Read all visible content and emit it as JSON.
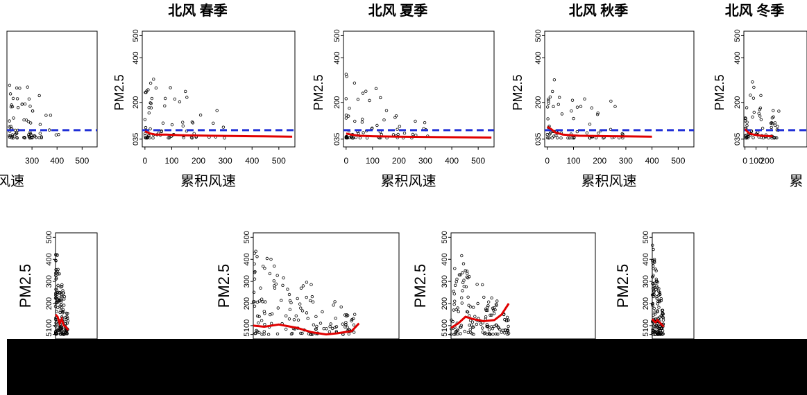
{
  "colors": {
    "points": "#000000",
    "smooth_line": "#e00000",
    "threshold_line": "#1f2fd6",
    "frame": "#000000",
    "background": "#ffffff",
    "bottom_band": "#000000"
  },
  "chart_data": [
    {
      "type": "scatter",
      "panel": "top-1",
      "title": "",
      "xlabel": "积风速",
      "ylabel": "",
      "xticks": [
        "300",
        "400",
        "500"
      ],
      "yticks": [],
      "xlim": [
        200,
        560
      ],
      "ylim": [
        0,
        520
      ],
      "threshold": 75,
      "smooth": []
    },
    {
      "type": "scatter",
      "panel": "top-2",
      "title": "北风 春季",
      "xlabel": "累积风速",
      "ylabel": "PM2.5",
      "xticks": [
        "0",
        "100",
        "200",
        "300",
        "400",
        "500"
      ],
      "yticks": [
        "035",
        "200",
        "400",
        "500"
      ],
      "xlim": [
        -10,
        560
      ],
      "ylim": [
        0,
        520
      ],
      "threshold": 75,
      "smooth": [
        [
          0,
          70
        ],
        [
          20,
          60
        ],
        [
          40,
          55
        ],
        [
          80,
          55
        ],
        [
          150,
          52
        ],
        [
          250,
          50
        ],
        [
          400,
          48
        ],
        [
          550,
          46
        ]
      ]
    },
    {
      "type": "scatter",
      "panel": "top-3",
      "title": "北风 夏季",
      "xlabel": "累积风速",
      "ylabel": "PM2.5",
      "xticks": [
        "0",
        "100",
        "200",
        "300",
        "400",
        "500"
      ],
      "yticks": [
        "035",
        "200",
        "400",
        "500"
      ],
      "xlim": [
        -10,
        560
      ],
      "ylim": [
        0,
        520
      ],
      "threshold": 75,
      "smooth": [
        [
          0,
          60
        ],
        [
          20,
          55
        ],
        [
          50,
          50
        ],
        [
          100,
          48
        ],
        [
          200,
          46
        ],
        [
          350,
          44
        ],
        [
          550,
          42
        ]
      ]
    },
    {
      "type": "scatter",
      "panel": "top-4",
      "title": "北风 秋季",
      "xlabel": "累积风速",
      "ylabel": "PM2.5",
      "xticks": [
        "0",
        "100",
        "200",
        "300",
        "400",
        "500"
      ],
      "yticks": [
        "035",
        "200",
        "400",
        "500"
      ],
      "xlim": [
        -10,
        560
      ],
      "ylim": [
        0,
        520
      ],
      "threshold": 75,
      "smooth": [
        [
          0,
          90
        ],
        [
          15,
          80
        ],
        [
          30,
          65
        ],
        [
          60,
          55
        ],
        [
          120,
          50
        ],
        [
          250,
          48
        ],
        [
          400,
          46
        ]
      ]
    },
    {
      "type": "scatter",
      "panel": "top-5",
      "title": "北风 冬季",
      "xlabel": "累",
      "ylabel": "PM2.5",
      "xticks": [
        "0",
        "100",
        "200"
      ],
      "yticks": [
        "035",
        "200",
        "400",
        "500"
      ],
      "xlim": [
        -10,
        560
      ],
      "ylim": [
        0,
        520
      ],
      "threshold": 75,
      "smooth": [
        [
          0,
          80
        ],
        [
          20,
          70
        ],
        [
          40,
          60
        ],
        [
          80,
          55
        ],
        [
          150,
          50
        ],
        [
          250,
          48
        ]
      ]
    },
    {
      "type": "scatter",
      "panel": "bottom-1",
      "title": "",
      "xlabel": "",
      "ylabel": "PM2.5",
      "xticks": [],
      "yticks": [
        "5",
        "100",
        "200",
        "300",
        "400",
        "500"
      ],
      "xlim": [
        0,
        200
      ],
      "ylim": [
        40,
        520
      ],
      "threshold": null,
      "smooth": [
        [
          0,
          150
        ],
        [
          10,
          140
        ],
        [
          20,
          110
        ],
        [
          30,
          130
        ],
        [
          40,
          100
        ],
        [
          50,
          95
        ],
        [
          60,
          80
        ]
      ]
    },
    {
      "type": "scatter",
      "panel": "bottom-2",
      "title": "",
      "xlabel": "",
      "ylabel": "PM2.5",
      "xticks": [],
      "yticks": [
        "5",
        "100",
        "200",
        "300",
        "400",
        "500"
      ],
      "xlim": [
        0,
        200
      ],
      "ylim": [
        40,
        520
      ],
      "threshold": null,
      "smooth": [
        [
          0,
          100
        ],
        [
          15,
          95
        ],
        [
          35,
          105
        ],
        [
          60,
          90
        ],
        [
          80,
          70
        ],
        [
          100,
          60
        ],
        [
          115,
          65
        ],
        [
          125,
          70
        ],
        [
          135,
          75
        ],
        [
          145,
          110
        ]
      ]
    },
    {
      "type": "scatter",
      "panel": "bottom-3",
      "title": "",
      "xlabel": "",
      "ylabel": "PM2.5",
      "xticks": [],
      "yticks": [
        "5",
        "100",
        "200",
        "300",
        "400",
        "500"
      ],
      "xlim": [
        0,
        200
      ],
      "ylim": [
        40,
        520
      ],
      "threshold": null,
      "smooth": [
        [
          0,
          90
        ],
        [
          10,
          110
        ],
        [
          20,
          140
        ],
        [
          30,
          130
        ],
        [
          45,
          120
        ],
        [
          60,
          125
        ],
        [
          70,
          150
        ],
        [
          80,
          200
        ]
      ]
    },
    {
      "type": "scatter",
      "panel": "bottom-4",
      "title": "",
      "xlabel": "",
      "ylabel": "PM2.5",
      "xticks": [],
      "yticks": [
        "5",
        "100",
        "200",
        "300",
        "400",
        "500"
      ],
      "xlim": [
        0,
        200
      ],
      "ylim": [
        40,
        520
      ],
      "threshold": null,
      "smooth": [
        [
          0,
          130
        ],
        [
          8,
          120
        ],
        [
          16,
          115
        ],
        [
          25,
          125
        ],
        [
          35,
          115
        ],
        [
          45,
          105
        ],
        [
          55,
          95
        ]
      ]
    }
  ]
}
